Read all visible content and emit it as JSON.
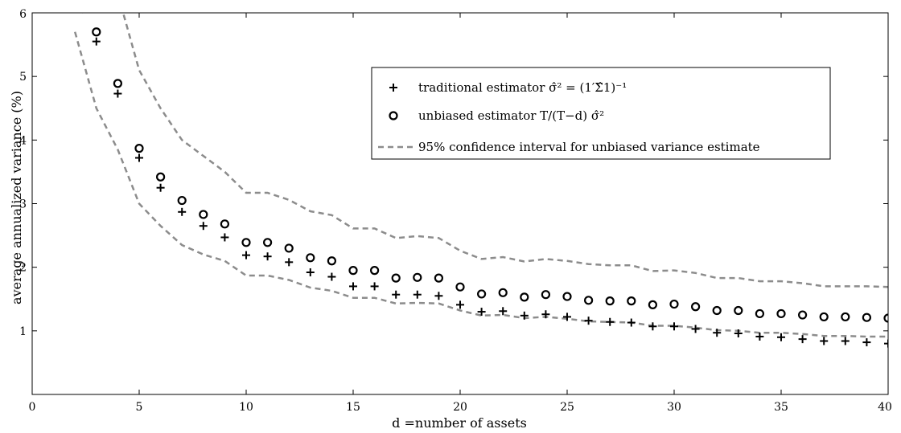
{
  "chart_data": {
    "type": "scatter",
    "title": "",
    "xlabel": "d =number of assets",
    "ylabel": "average annualized variance (%)",
    "xlim": [
      0,
      40
    ],
    "ylim": [
      0,
      6
    ],
    "xticks": [
      0,
      5,
      10,
      15,
      20,
      25,
      30,
      35,
      40
    ],
    "yticks": [
      1,
      2,
      3,
      4,
      5,
      6
    ],
    "grid": false,
    "legend_position": "top-right",
    "x": [
      3,
      4,
      5,
      6,
      7,
      8,
      9,
      10,
      11,
      12,
      13,
      14,
      15,
      16,
      17,
      18,
      19,
      20,
      21,
      22,
      23,
      24,
      25,
      26,
      27,
      28,
      29,
      30,
      31,
      32,
      33,
      34,
      35,
      36,
      37,
      38,
      39,
      40
    ],
    "series": [
      {
        "name": "traditional estimator σ̂² = (1′Σ̂1)⁻¹",
        "marker": "plus",
        "color": "#000000",
        "values": [
          5.55,
          4.73,
          3.72,
          3.25,
          2.87,
          2.65,
          2.47,
          2.19,
          2.17,
          2.08,
          1.92,
          1.85,
          1.7,
          1.7,
          1.57,
          1.57,
          1.55,
          1.41,
          1.3,
          1.31,
          1.24,
          1.26,
          1.22,
          1.16,
          1.14,
          1.13,
          1.07,
          1.07,
          1.03,
          0.97,
          0.96,
          0.91,
          0.9,
          0.87,
          0.84,
          0.84,
          0.82,
          0.8
        ]
      },
      {
        "name": "unbiased estimator T/(T−d) σ̂²",
        "marker": "circle",
        "color": "#000000",
        "values": [
          5.7,
          4.89,
          3.87,
          3.42,
          3.05,
          2.83,
          2.68,
          2.39,
          2.39,
          2.3,
          2.15,
          2.1,
          1.95,
          1.95,
          1.83,
          1.84,
          1.83,
          1.69,
          1.58,
          1.6,
          1.53,
          1.57,
          1.54,
          1.48,
          1.47,
          1.47,
          1.41,
          1.42,
          1.38,
          1.32,
          1.32,
          1.27,
          1.27,
          1.25,
          1.22,
          1.22,
          1.21,
          1.2
        ]
      }
    ],
    "confidence_interval": {
      "name": "95% confidence interval for unbiased variance estimate",
      "color": "#8c8c8c",
      "style": "dashed",
      "upper": {
        "x": [
          2.3,
          3,
          4,
          5,
          6,
          7,
          8,
          9,
          10,
          11,
          12,
          13,
          14,
          15,
          16,
          17,
          18,
          19,
          20,
          21,
          22,
          23,
          24,
          25,
          26,
          27,
          28,
          29,
          30,
          31,
          32,
          33,
          34,
          35,
          36,
          37,
          38,
          39,
          40
        ],
        "y": [
          6.0,
          6.3,
          6.3,
          5.1,
          4.5,
          4.0,
          3.75,
          3.5,
          3.17,
          3.17,
          3.06,
          2.88,
          2.82,
          2.61,
          2.61,
          2.46,
          2.49,
          2.46,
          2.26,
          2.13,
          2.16,
          2.09,
          2.13,
          2.1,
          2.05,
          2.03,
          2.03,
          1.94,
          1.95,
          1.91,
          1.83,
          1.83,
          1.78,
          1.78,
          1.75,
          1.7,
          1.7,
          1.7,
          1.69
        ]
      },
      "lower": {
        "x": [
          2,
          3,
          4,
          5,
          6,
          7,
          8,
          9,
          10,
          11,
          12,
          13,
          14,
          15,
          16,
          17,
          18,
          19,
          20,
          21,
          22,
          23,
          24,
          25,
          26,
          27,
          28,
          29,
          30,
          31,
          32,
          33,
          34,
          35,
          36,
          37,
          38,
          39,
          40
        ],
        "y": [
          5.7,
          4.5,
          3.85,
          3.0,
          2.65,
          2.35,
          2.2,
          2.1,
          1.87,
          1.87,
          1.8,
          1.68,
          1.63,
          1.52,
          1.52,
          1.43,
          1.44,
          1.43,
          1.32,
          1.24,
          1.25,
          1.2,
          1.22,
          1.19,
          1.15,
          1.14,
          1.13,
          1.08,
          1.08,
          1.05,
          1.01,
          1.0,
          0.97,
          0.97,
          0.95,
          0.92,
          0.92,
          0.91,
          0.91
        ]
      }
    }
  }
}
